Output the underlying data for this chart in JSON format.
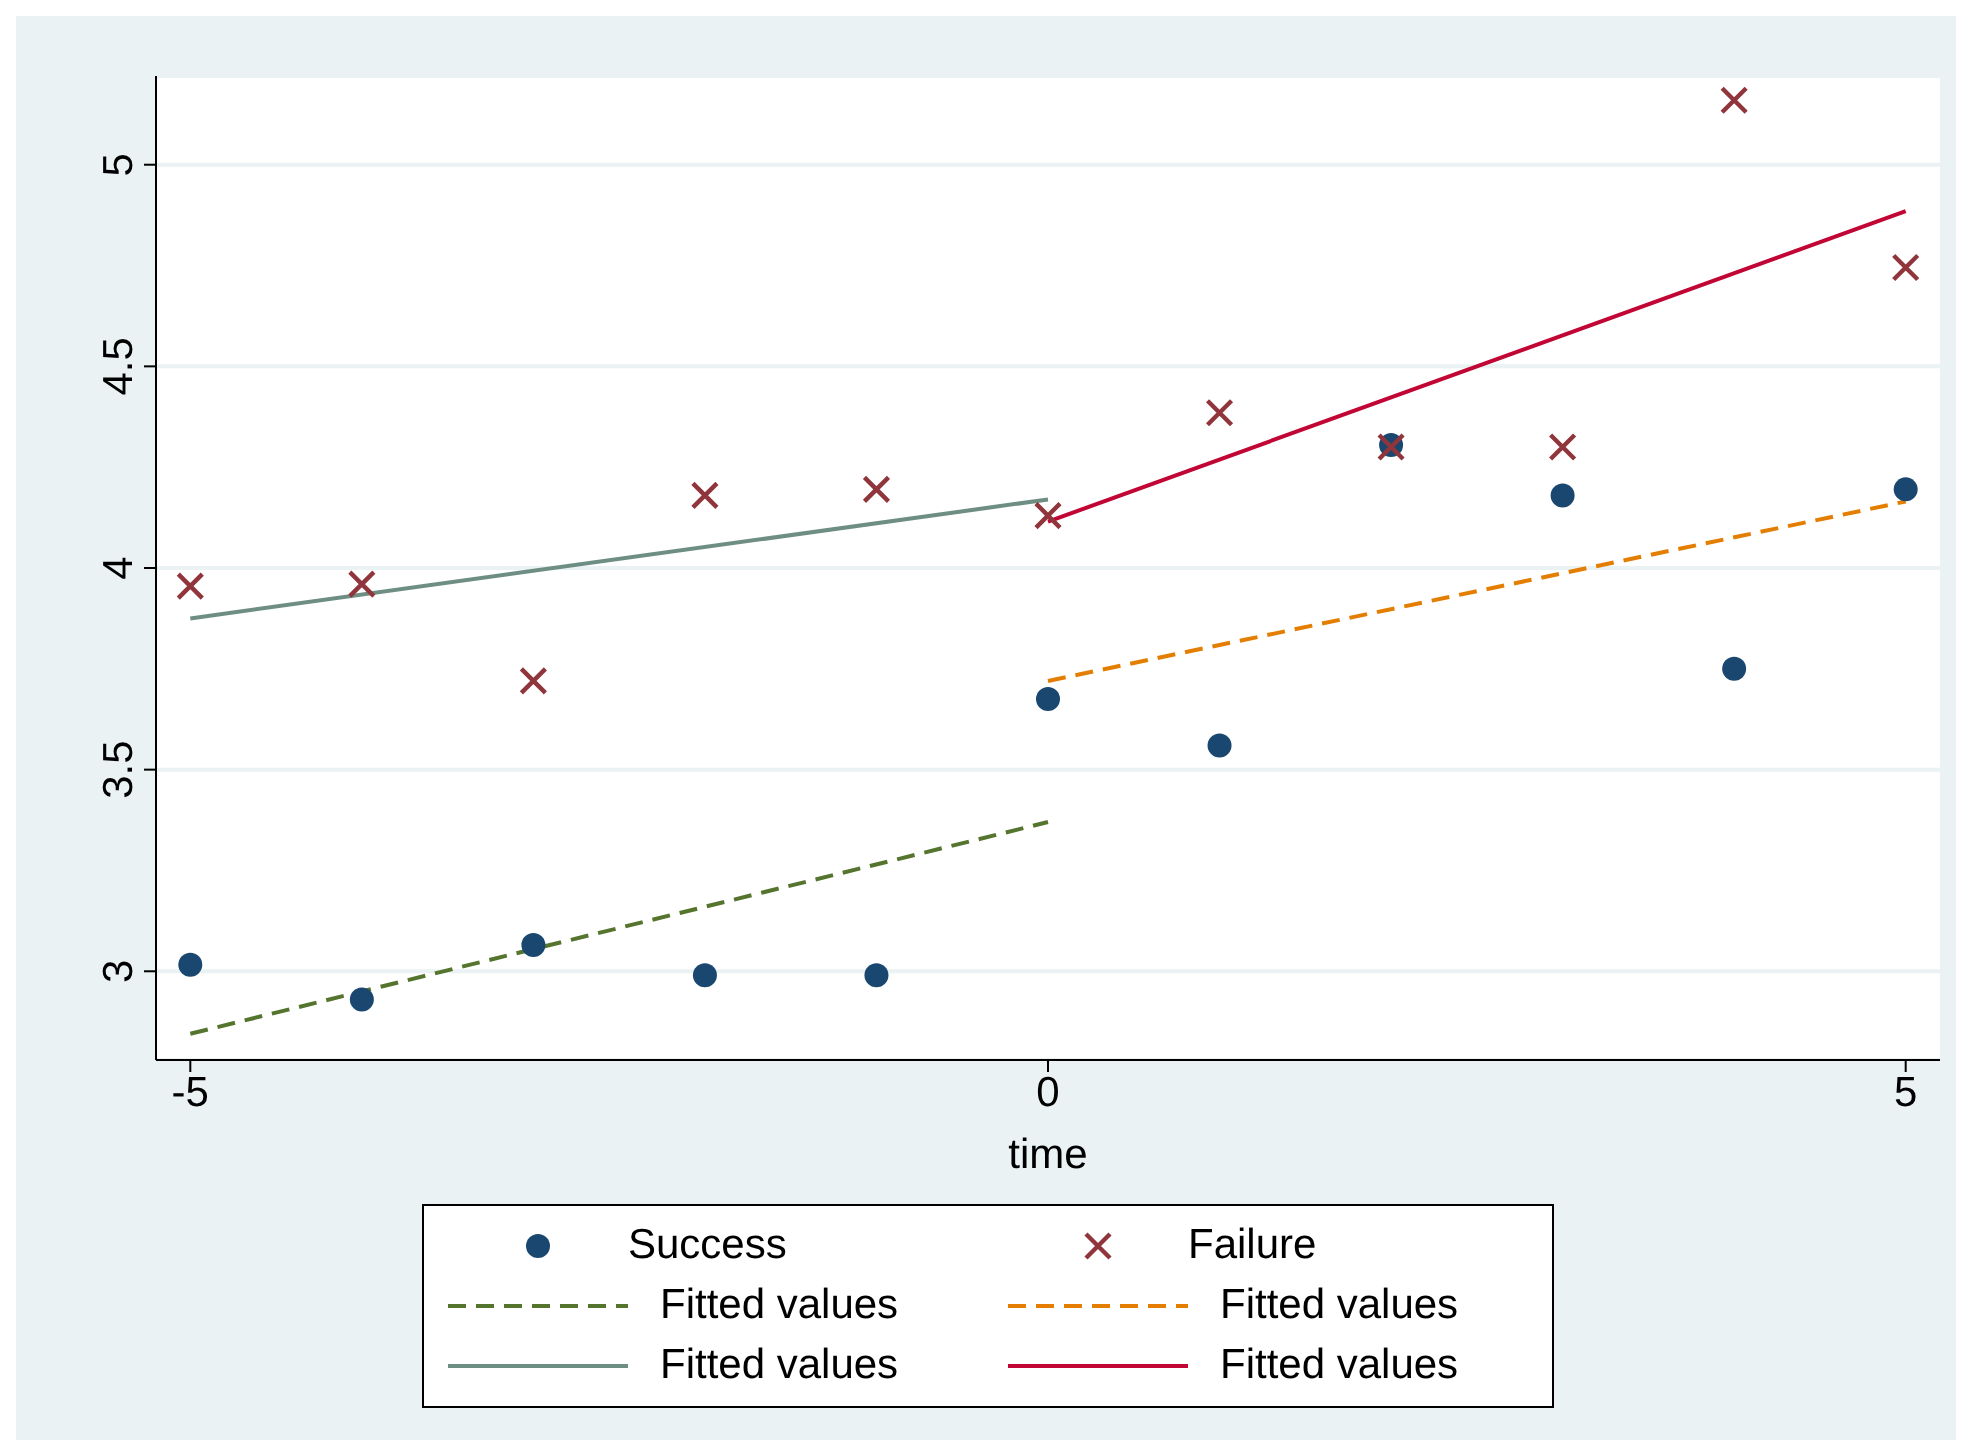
{
  "chart_data": {
    "type": "scatter",
    "xlabel": "time",
    "xlim": [
      -5.2,
      5.2
    ],
    "xticks": [
      -5,
      0,
      5
    ],
    "ylim": [
      2.78,
      5.22
    ],
    "yticks": [
      3,
      3.5,
      4,
      4.5,
      5
    ],
    "grid": "y",
    "legend": "bottom",
    "series": [
      {
        "name": "Success",
        "type": "scatter",
        "marker": "circle",
        "color": "#1a476f",
        "x": [
          -5,
          -4,
          -3,
          -2,
          -1,
          0,
          1,
          2,
          3,
          4,
          5
        ],
        "values": [
          3.016,
          2.93,
          3.065,
          2.99,
          2.99,
          3.675,
          3.56,
          4.305,
          4.18,
          3.75,
          4.195
        ]
      },
      {
        "name": "Failure",
        "type": "scatter",
        "marker": "cross",
        "color": "#90353b",
        "x": [
          -5,
          -4,
          -3,
          -2,
          -1,
          0,
          1,
          2,
          3,
          4,
          5
        ],
        "values": [
          3.955,
          3.96,
          3.72,
          4.18,
          4.195,
          4.13,
          4.385,
          4.3,
          4.3,
          5.16,
          4.745
        ]
      },
      {
        "name": "Fitted values",
        "type": "line",
        "line_style": "dashed",
        "color": "#55752f",
        "x": [
          -5,
          0
        ],
        "values": [
          2.845,
          3.37
        ]
      },
      {
        "name": "Fitted values",
        "type": "line",
        "line_style": "dashed",
        "color": "#e37e00",
        "x": [
          0,
          5
        ],
        "values": [
          3.72,
          4.165
        ]
      },
      {
        "name": "Fitted values",
        "type": "line",
        "line_style": "solid",
        "color": "#6e8e84",
        "x": [
          -5,
          0
        ],
        "values": [
          3.875,
          4.17
        ]
      },
      {
        "name": "Fitted values",
        "type": "line",
        "line_style": "solid",
        "color": "#c10534",
        "x": [
          0,
          5
        ],
        "values": [
          4.115,
          4.885
        ]
      }
    ]
  }
}
